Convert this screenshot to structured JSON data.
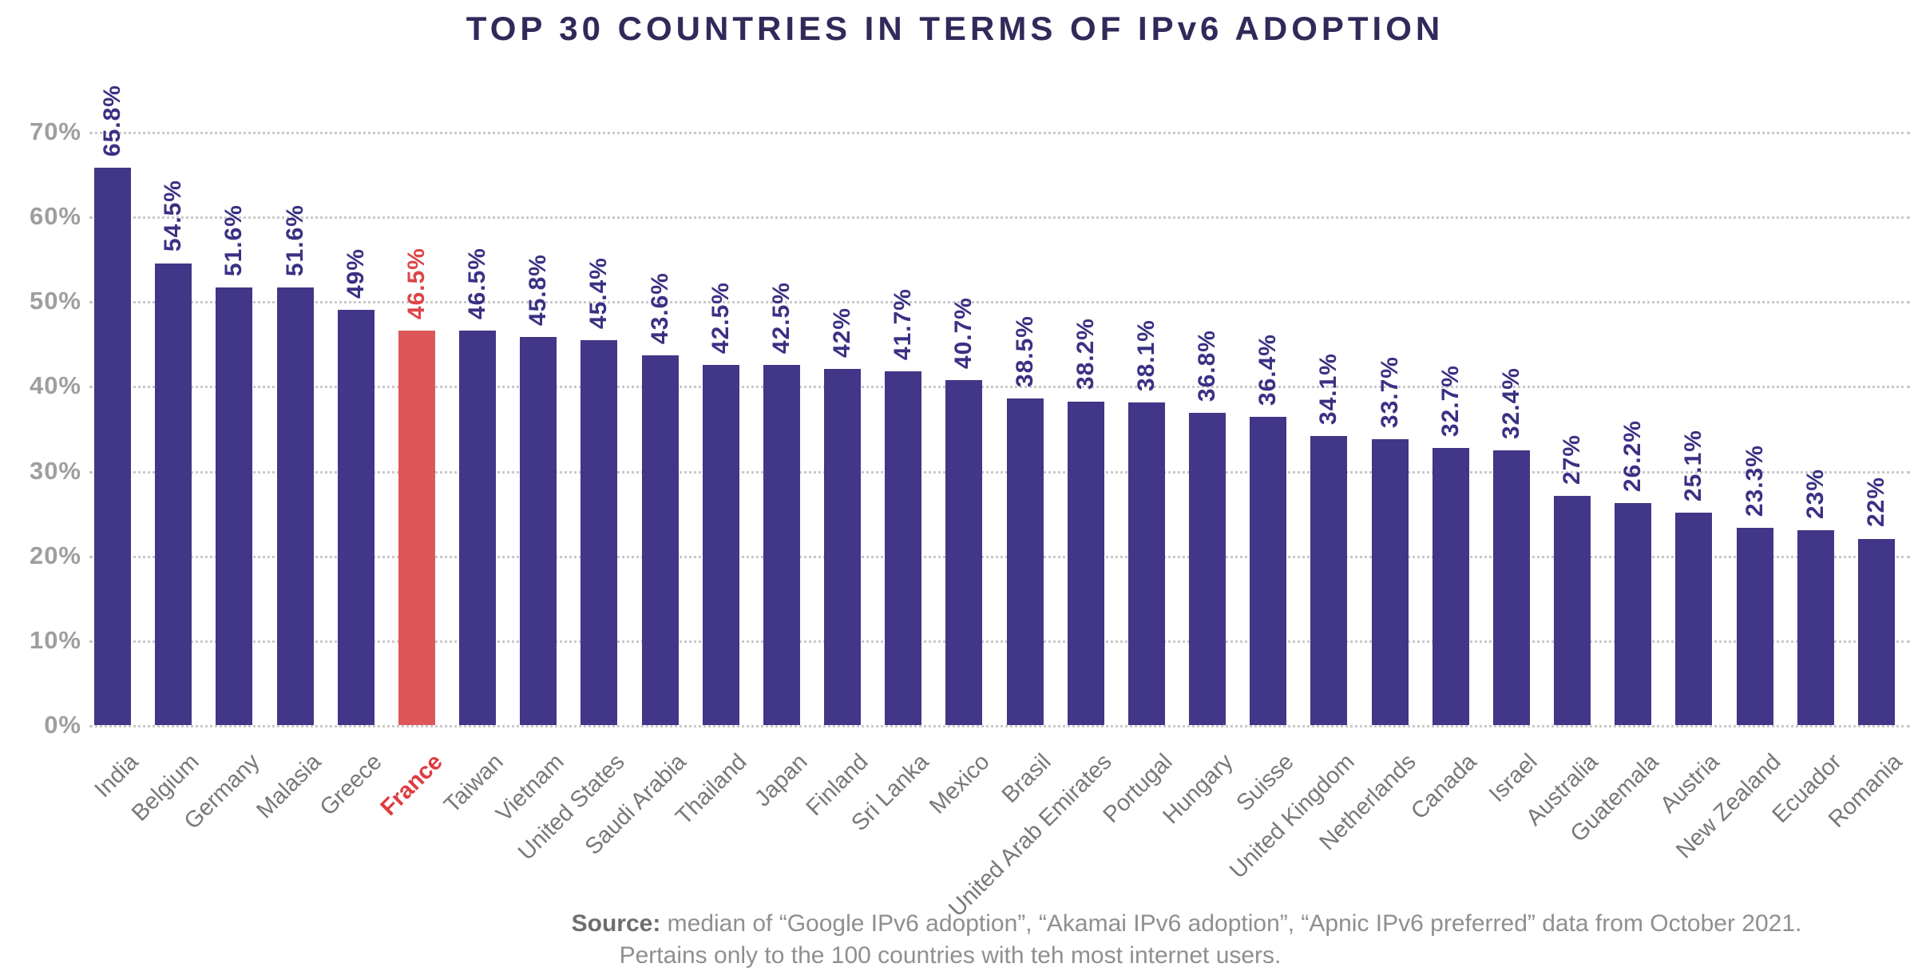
{
  "title": "TOP 30 COUNTRIES IN TERMS OF IPv6 ADOPTION",
  "chart_data": {
    "type": "bar",
    "title": "TOP 30 COUNTRIES IN TERMS OF IPv6 ADOPTION",
    "xlabel": "",
    "ylabel": "",
    "ylim": [
      0,
      70
    ],
    "yticks": [
      0,
      10,
      20,
      30,
      40,
      50,
      60,
      70
    ],
    "ytick_labels": [
      "0%",
      "10%",
      "20%",
      "30%",
      "40%",
      "50%",
      "60%",
      "70%"
    ],
    "grid": "horizontal-dotted",
    "legend": "none",
    "categories": [
      "India",
      "Belgium",
      "Germany",
      "Malasia",
      "Greece",
      "France",
      "Taiwan",
      "Vietnam",
      "United States",
      "Saudi Arabia",
      "Thailand",
      "Japan",
      "Finland",
      "Sri Lanka",
      "Mexico",
      "Brasil",
      "United Arab Emirates",
      "Portugal",
      "Hungary",
      "Suisse",
      "United Kingdom",
      "Netherlands",
      "Canada",
      "Israel",
      "Australia",
      "Guatemala",
      "Austria",
      "New Zealand",
      "Ecuador",
      "Romania"
    ],
    "values": [
      65.8,
      54.5,
      51.6,
      51.6,
      49,
      46.5,
      46.5,
      45.8,
      45.4,
      43.6,
      42.5,
      42.5,
      42,
      41.7,
      40.7,
      38.5,
      38.2,
      38.1,
      36.8,
      36.4,
      34.1,
      33.7,
      32.7,
      32.4,
      27,
      26.2,
      25.1,
      23.3,
      23,
      22
    ],
    "value_labels": [
      "65.8%",
      "54.5%",
      "51.6%",
      "51.6%",
      "49%",
      "46.5%",
      "46.5%",
      "45.8%",
      "45.4%",
      "43.6%",
      "42.5%",
      "42.5%",
      "42%",
      "41.7%",
      "40.7%",
      "38.5%",
      "38.2%",
      "38.1%",
      "36.8%",
      "36.4%",
      "34.1%",
      "33.7%",
      "32.7%",
      "32.4%",
      "27%",
      "26.2%",
      "25.1%",
      "23.3%",
      "23%",
      "22%"
    ],
    "highlight_category": "France",
    "bar_color": "#413687",
    "highlight_color": "#dd5658"
  },
  "source": {
    "label": "Source:",
    "line1_rest": " median of “Google IPv6 adoption”, “Akamai IPv6 adoption”, “Apnic IPv6 preferred” data from October 2021.",
    "line2": "Pertains only to the 100 countries with teh most internet users."
  },
  "colors": {
    "bar": "#413687",
    "highlight": "#dd5658",
    "title": "#32295a",
    "value_label": "#3a3184",
    "value_label_highlight": "#dd4548",
    "ytick_label": "#9e9e9e",
    "gridline": "#c9c9c9",
    "xlabel": "#787878",
    "xlabel_highlight": "#e03a3e",
    "source_text": "#8f8f8f"
  }
}
